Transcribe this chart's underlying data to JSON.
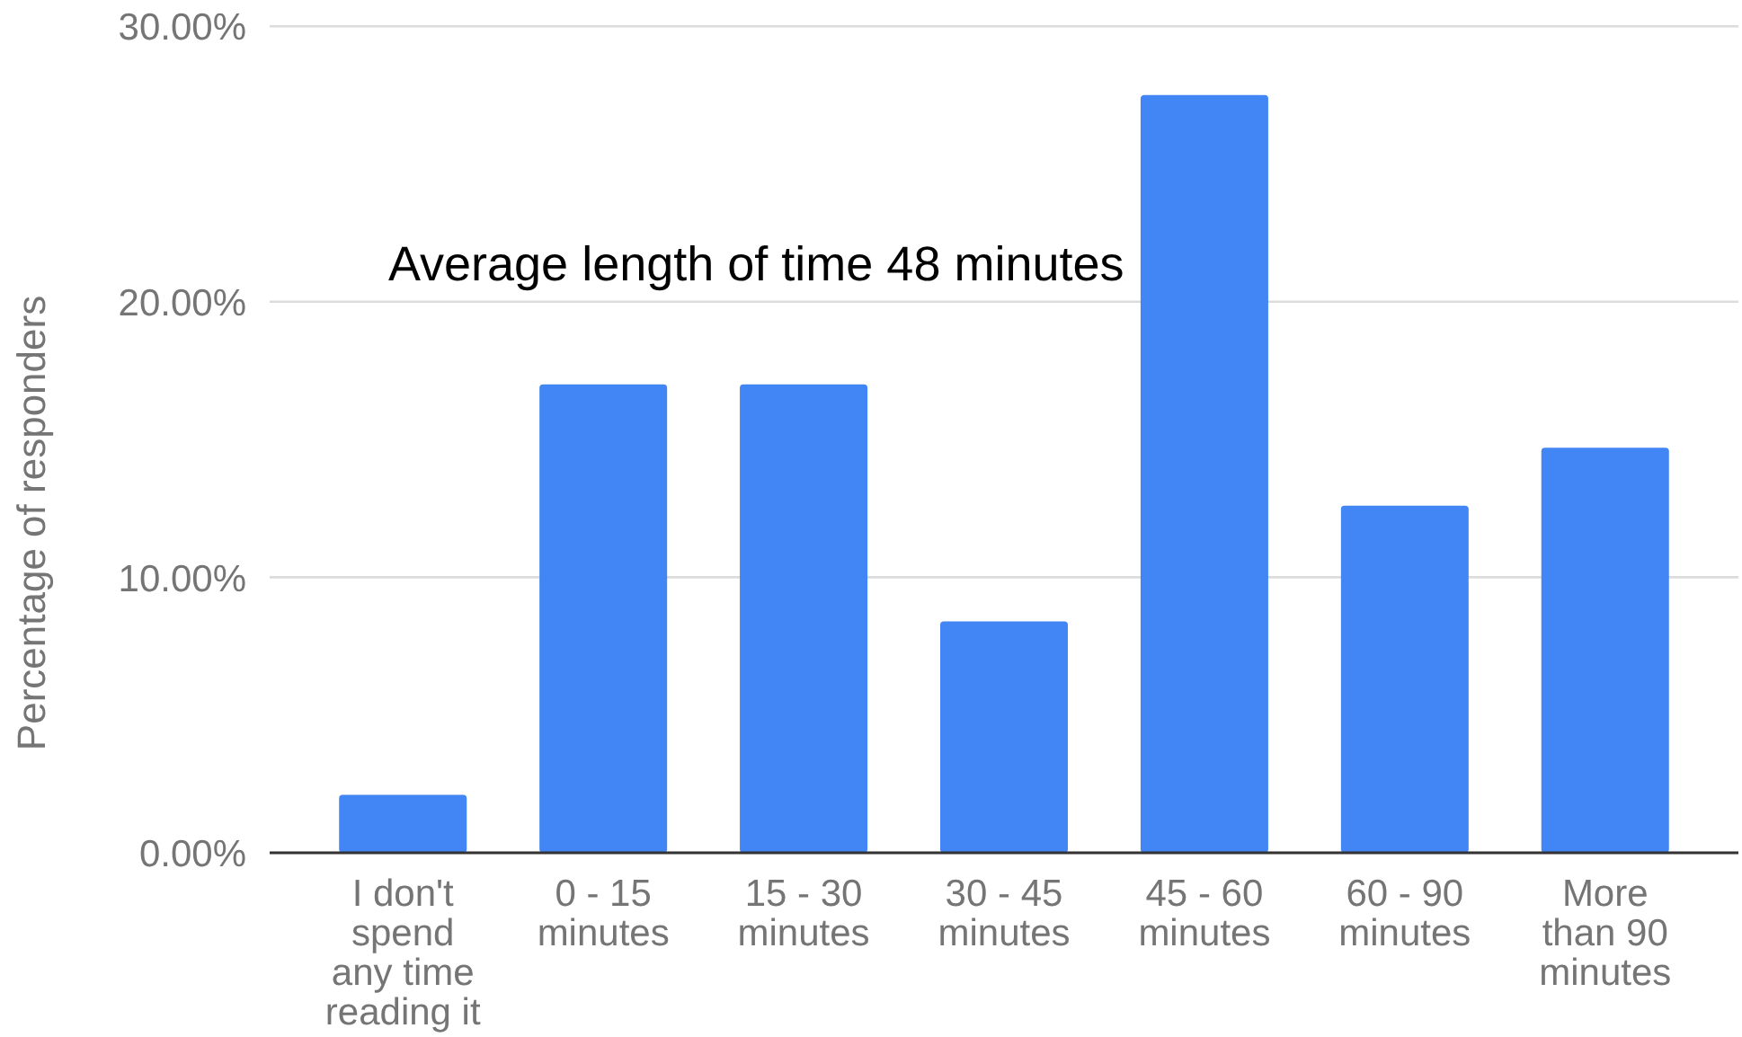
{
  "chart_data": {
    "type": "bar",
    "ylabel": "Percentage of responders",
    "annotations": [
      "Average length of time 48 minutes"
    ],
    "categories": [
      "I don't spend any time reading it",
      "0 - 15 minutes",
      "15 - 30 minutes",
      "30 - 45 minutes",
      "45 - 60 minutes",
      "60 - 90 minutes",
      "More than 90 minutes"
    ],
    "values": [
      2.1,
      17.0,
      17.0,
      8.4,
      27.5,
      12.6,
      14.7
    ],
    "color": "#4285f4",
    "ylim": [
      0,
      30
    ],
    "yticks": [
      {
        "value": 0,
        "label": "0.00%"
      },
      {
        "value": 10,
        "label": "10.00%"
      },
      {
        "value": 20,
        "label": "20.00%"
      },
      {
        "value": 30,
        "label": "30.00%"
      }
    ],
    "grid": "y"
  }
}
